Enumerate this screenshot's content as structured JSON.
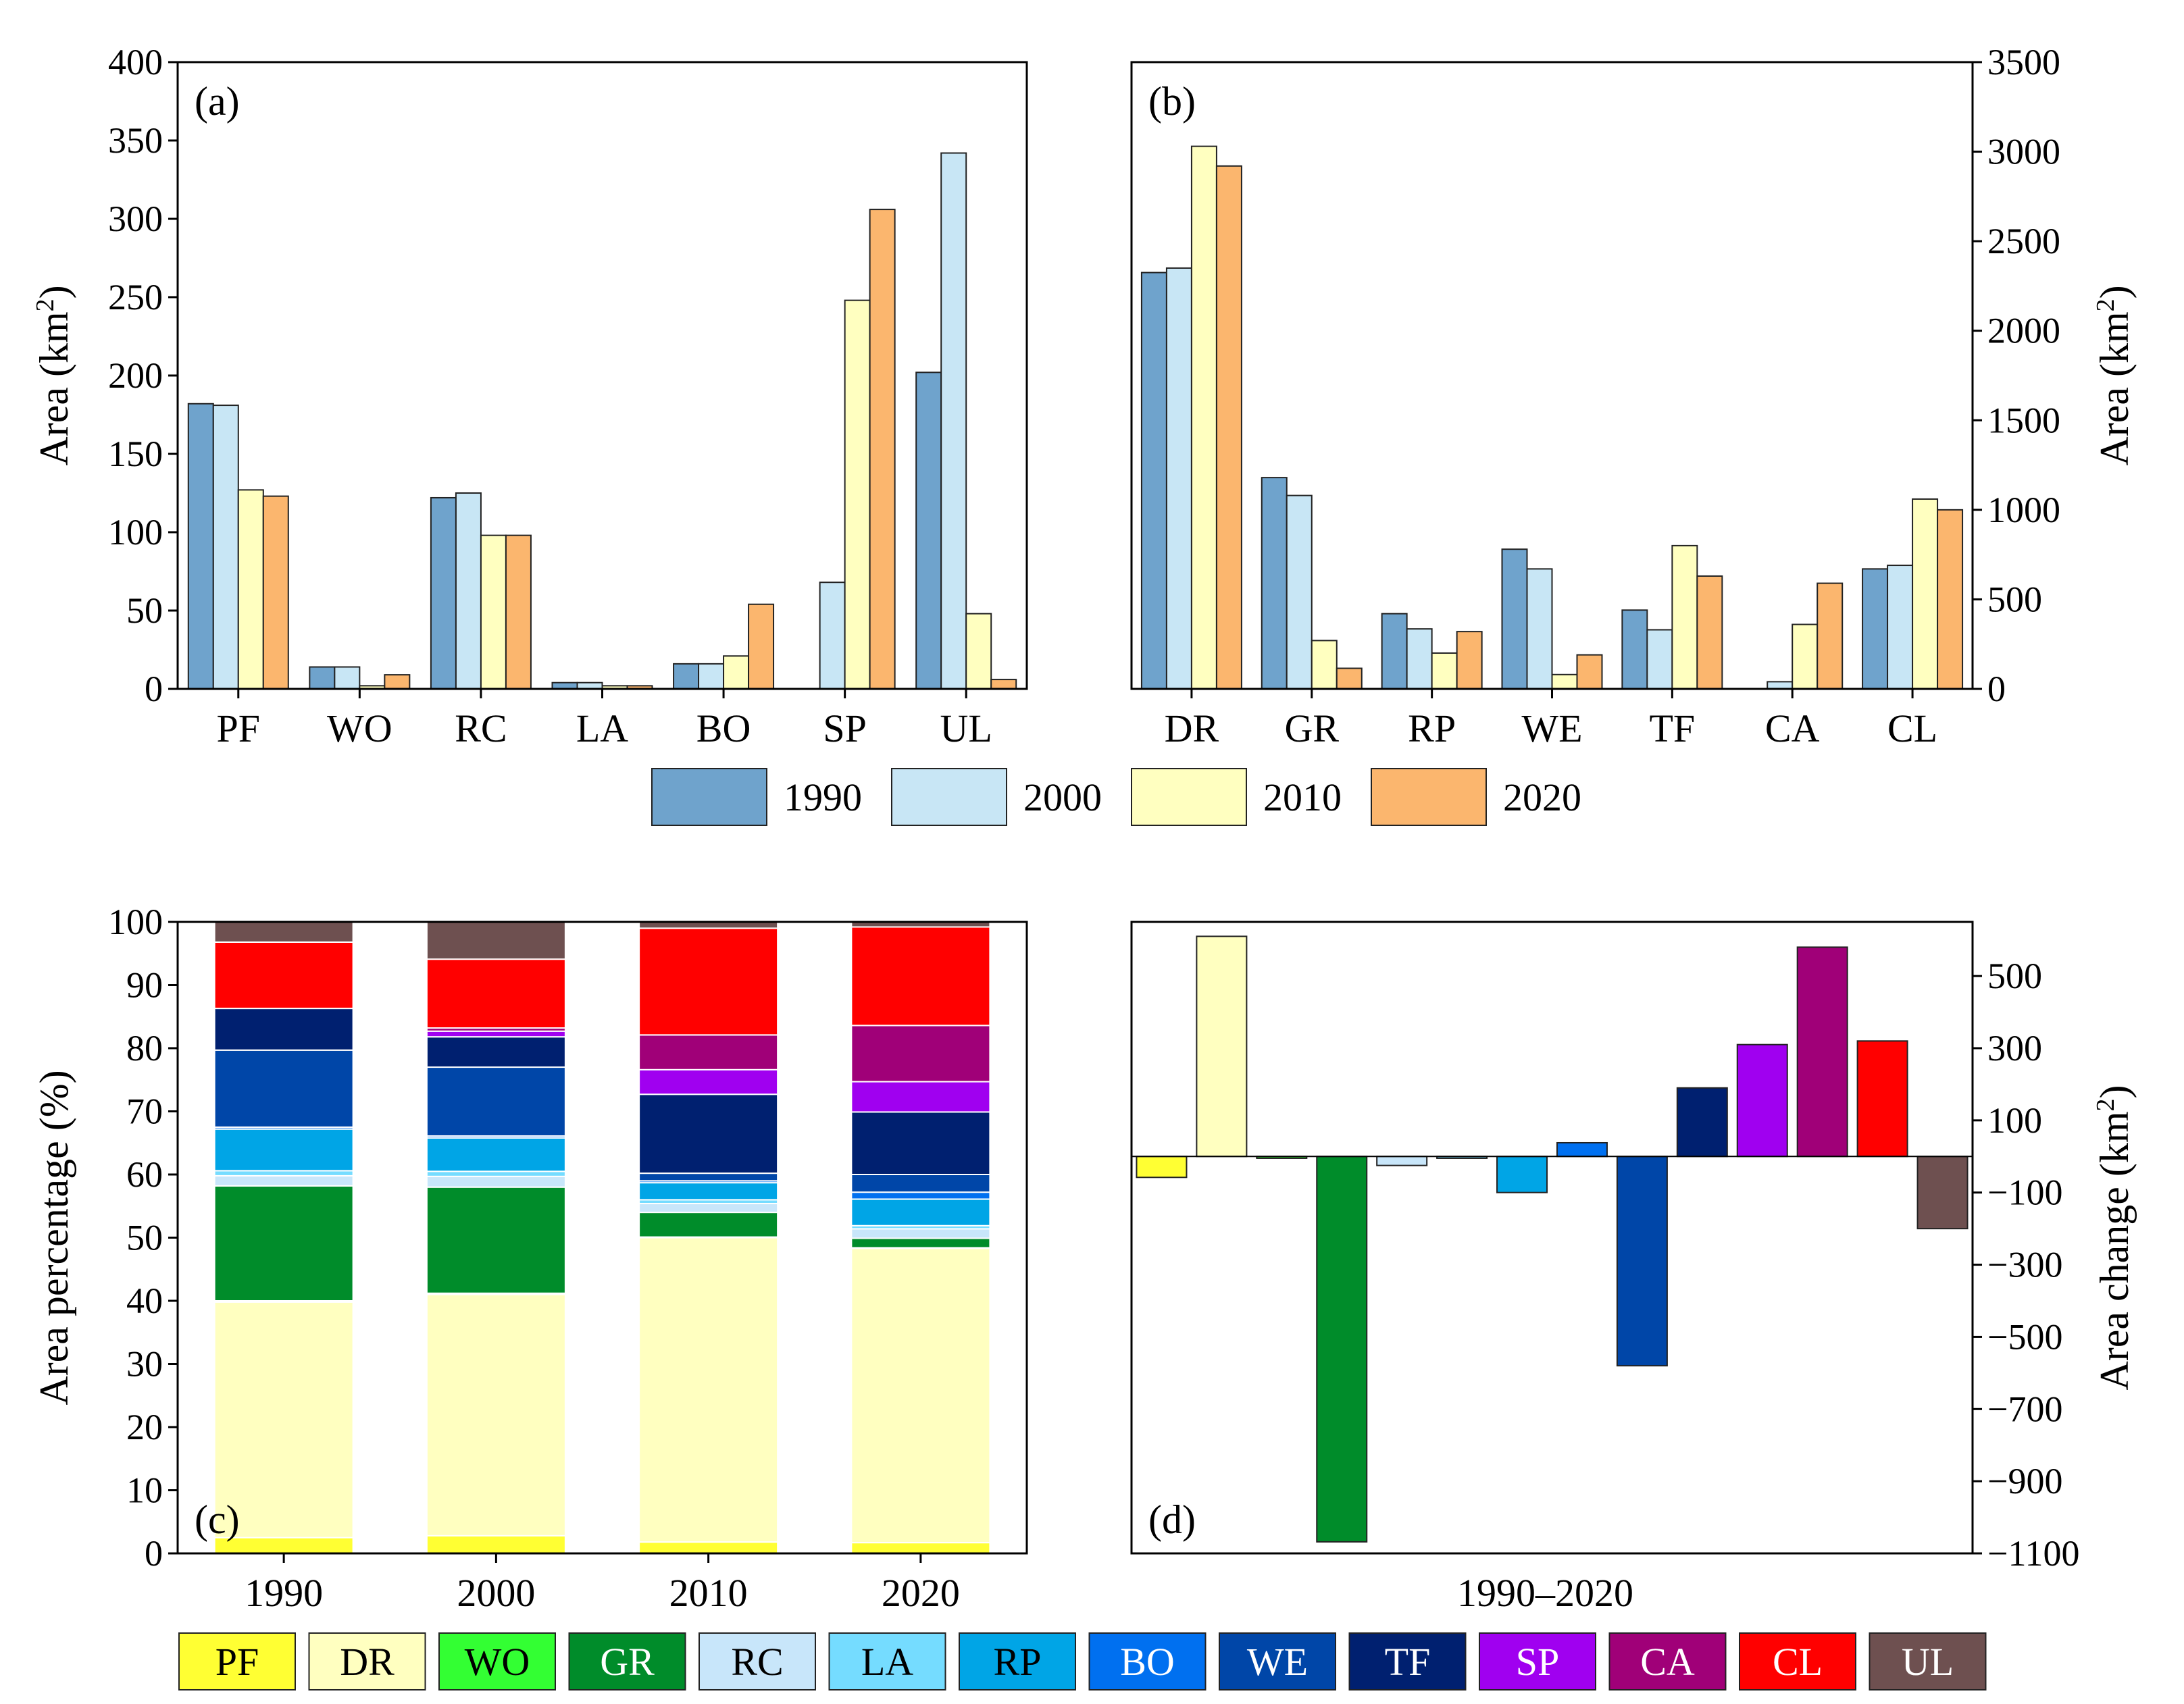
{
  "colors": {
    "PF": "#ffff33",
    "DR": "#ffffc0",
    "WO": "#33ff33",
    "GR": "#008c2a",
    "RC": "#c8e6fa",
    "LA": "#75dcff",
    "RP": "#00a5e6",
    "BO": "#0070f0",
    "WE": "#0046a8",
    "TF": "#002070",
    "SP": "#a000f0",
    "CA": "#a00078",
    "CL": "#ff0000",
    "UL": "#6e5050",
    "y1990": "#6fa3cc",
    "y2000": "#c8e6f5",
    "y2010": "#ffffc0",
    "y2020": "#fbb66e"
  },
  "legend_years": [
    "1990",
    "2000",
    "2010",
    "2020"
  ],
  "legend_classes": [
    "PF",
    "DR",
    "WO",
    "GR",
    "RC",
    "LA",
    "RP",
    "BO",
    "WE",
    "TF",
    "SP",
    "CA",
    "CL",
    "UL"
  ],
  "chart_data": [
    {
      "panel": "(a)",
      "type": "bar",
      "categories": [
        "PF",
        "WO",
        "RC",
        "LA",
        "BO",
        "SP",
        "UL"
      ],
      "series": [
        {
          "name": "1990",
          "values": [
            182,
            14,
            122,
            4,
            16,
            0,
            202
          ]
        },
        {
          "name": "2000",
          "values": [
            181,
            14,
            125,
            4,
            16,
            68,
            342
          ]
        },
        {
          "name": "2010",
          "values": [
            127,
            2,
            98,
            2,
            21,
            248,
            48
          ]
        },
        {
          "name": "2020",
          "values": [
            123,
            9,
            98,
            2,
            54,
            306,
            6
          ]
        }
      ],
      "ylabel": "Area (km²)",
      "ylim": [
        0,
        400
      ],
      "yticks": [
        "0",
        "50",
        "100",
        "150",
        "200",
        "250",
        "300",
        "350",
        "400"
      ],
      "grid": false
    },
    {
      "panel": "(b)",
      "type": "bar",
      "categories": [
        "DR",
        "GR",
        "RP",
        "WE",
        "TF",
        "CA",
        "CL"
      ],
      "series": [
        {
          "name": "1990",
          "values": [
            2325,
            1180,
            420,
            780,
            440,
            0,
            670
          ]
        },
        {
          "name": "2000",
          "values": [
            2350,
            1080,
            335,
            670,
            330,
            40,
            690
          ]
        },
        {
          "name": "2010",
          "values": [
            3030,
            270,
            200,
            80,
            800,
            360,
            1060
          ]
        },
        {
          "name": "2020",
          "values": [
            2920,
            115,
            320,
            190,
            630,
            590,
            1000
          ]
        }
      ],
      "ylabel": "Area (km²)",
      "ylim": [
        0,
        3500
      ],
      "yticks": [
        "0",
        "500",
        "1000",
        "1500",
        "2000",
        "2500",
        "3000",
        "3500"
      ],
      "grid": false
    },
    {
      "panel": "(c)",
      "type": "bar",
      "stacked": true,
      "categories": [
        "1990",
        "2000",
        "2010",
        "2020"
      ],
      "series": [
        {
          "name": "PF",
          "values": [
            2.5,
            2.8,
            1.8,
            1.7
          ]
        },
        {
          "name": "DR",
          "values": [
            37.3,
            38.2,
            48.2,
            46.6
          ]
        },
        {
          "name": "WO",
          "values": [
            0.2,
            0.2,
            0.1,
            0.1
          ]
        },
        {
          "name": "GR",
          "values": [
            18.2,
            16.8,
            3.9,
            1.5
          ]
        },
        {
          "name": "RC",
          "values": [
            1.6,
            1.7,
            1.4,
            1.5
          ]
        },
        {
          "name": "LA",
          "values": [
            0.8,
            0.8,
            0.6,
            0.5
          ]
        },
        {
          "name": "RP",
          "values": [
            6.6,
            5.3,
            2.7,
            4.2
          ]
        },
        {
          "name": "BO",
          "values": [
            0.3,
            0.3,
            0.3,
            1.1
          ]
        },
        {
          "name": "WE",
          "values": [
            12.2,
            10.9,
            1.2,
            2.8
          ]
        },
        {
          "name": "TF",
          "values": [
            6.6,
            4.8,
            12.5,
            9.9
          ]
        },
        {
          "name": "SP",
          "values": [
            0.0,
            0.9,
            3.9,
            4.8
          ]
        },
        {
          "name": "CA",
          "values": [
            0.0,
            0.5,
            5.5,
            8.9
          ]
        },
        {
          "name": "CL",
          "values": [
            10.5,
            10.9,
            16.9,
            15.6
          ]
        },
        {
          "name": "UL",
          "values": [
            3.2,
            5.9,
            1.0,
            0.8
          ]
        }
      ],
      "ylabel": "Area percentage (%)",
      "ylim": [
        0,
        100
      ],
      "yticks": [
        "0",
        "10",
        "20",
        "30",
        "40",
        "50",
        "60",
        "70",
        "80",
        "90",
        "100"
      ],
      "grid": false
    },
    {
      "panel": "(d)",
      "type": "bar",
      "categories": [
        "PF",
        "DR",
        "WO",
        "GR",
        "RC",
        "LA",
        "RP",
        "BO",
        "WE",
        "TF",
        "SP",
        "CA",
        "CL",
        "UL"
      ],
      "values": [
        -58,
        610,
        -5,
        -1068,
        -25,
        -5,
        -100,
        38,
        -580,
        190,
        310,
        580,
        320,
        -200
      ],
      "xlabel": "1990–2020",
      "ylabel": "Area change (km²)",
      "ylim": [
        -1100,
        650
      ],
      "ytick_values": [
        -1100,
        -900,
        -700,
        -500,
        -300,
        -100,
        100,
        300,
        500
      ],
      "yticks": [
        "−1100",
        "−900",
        "−700",
        "−500",
        "−300",
        "−100",
        "100",
        "300",
        "500"
      ],
      "grid": false
    }
  ]
}
